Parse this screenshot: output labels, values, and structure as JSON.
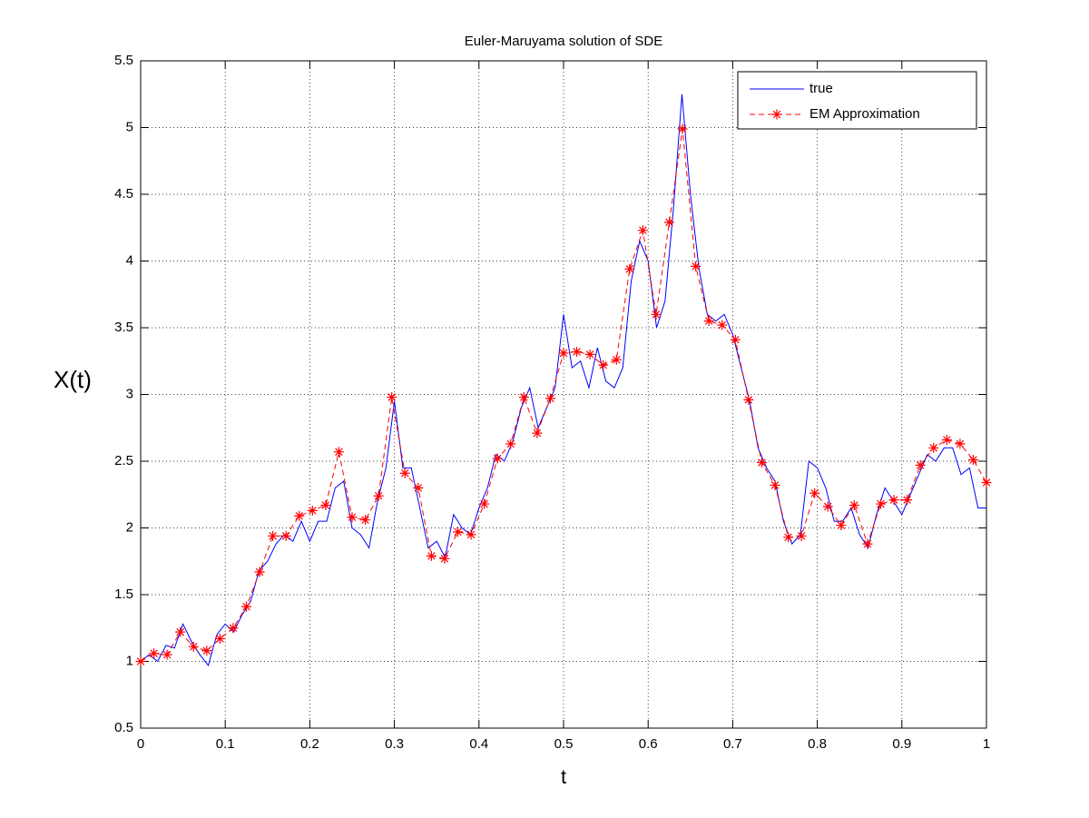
{
  "chart_data": {
    "type": "line",
    "title": "Euler-Maruyama solution of SDE",
    "x_label": "t",
    "y_label": "X(t)",
    "xlim": [
      0,
      1
    ],
    "ylim": [
      0.5,
      5.5
    ],
    "xticks": [
      0,
      0.1,
      0.2,
      0.3,
      0.4,
      0.5,
      0.6,
      0.7,
      0.8,
      0.9,
      1
    ],
    "yticks": [
      0.5,
      1,
      1.5,
      2,
      2.5,
      3,
      3.5,
      4,
      4.5,
      5,
      5.5
    ],
    "grid": true,
    "legend": "upper right",
    "series": [
      {
        "name": "true",
        "color": "#0000ff",
        "style": "solid",
        "marker": "none",
        "x": [
          0,
          0.01,
          0.02,
          0.03,
          0.04,
          0.05,
          0.06,
          0.07,
          0.08,
          0.09,
          0.1,
          0.11,
          0.12,
          0.13,
          0.14,
          0.15,
          0.16,
          0.17,
          0.18,
          0.19,
          0.2,
          0.21,
          0.22,
          0.23,
          0.24,
          0.25,
          0.26,
          0.27,
          0.28,
          0.29,
          0.3,
          0.31,
          0.32,
          0.33,
          0.34,
          0.35,
          0.36,
          0.37,
          0.38,
          0.39,
          0.4,
          0.41,
          0.42,
          0.43,
          0.44,
          0.45,
          0.46,
          0.47,
          0.48,
          0.49,
          0.5,
          0.51,
          0.52,
          0.53,
          0.54,
          0.55,
          0.56,
          0.57,
          0.58,
          0.59,
          0.6,
          0.61,
          0.62,
          0.63,
          0.64,
          0.65,
          0.66,
          0.67,
          0.68,
          0.69,
          0.7,
          0.71,
          0.72,
          0.73,
          0.74,
          0.75,
          0.76,
          0.77,
          0.78,
          0.79,
          0.8,
          0.81,
          0.82,
          0.83,
          0.84,
          0.85,
          0.86,
          0.87,
          0.88,
          0.89,
          0.9,
          0.91,
          0.92,
          0.93,
          0.94,
          0.95,
          0.96,
          0.97,
          0.98,
          0.99,
          1
        ],
        "values": [
          1.0,
          1.05,
          1.0,
          1.12,
          1.1,
          1.28,
          1.15,
          1.05,
          0.97,
          1.2,
          1.28,
          1.22,
          1.35,
          1.45,
          1.68,
          1.75,
          1.88,
          1.95,
          1.9,
          2.05,
          1.9,
          2.05,
          2.05,
          2.3,
          2.35,
          2.0,
          1.95,
          1.85,
          2.2,
          2.45,
          2.95,
          2.45,
          2.45,
          2.15,
          1.85,
          1.9,
          1.78,
          2.1,
          2.0,
          1.95,
          2.15,
          2.3,
          2.55,
          2.5,
          2.65,
          2.9,
          3.05,
          2.75,
          2.9,
          3.05,
          3.6,
          3.2,
          3.25,
          3.05,
          3.35,
          3.1,
          3.05,
          3.2,
          3.85,
          4.15,
          4.0,
          3.5,
          3.7,
          4.4,
          5.25,
          4.5,
          3.95,
          3.6,
          3.55,
          3.6,
          3.45,
          3.2,
          2.95,
          2.6,
          2.45,
          2.35,
          2.05,
          1.88,
          1.95,
          2.5,
          2.45,
          2.3,
          2.05,
          2.05,
          2.15,
          1.95,
          1.85,
          2.1,
          2.3,
          2.2,
          2.1,
          2.25,
          2.4,
          2.55,
          2.5,
          2.6,
          2.6,
          2.4,
          2.45,
          2.15,
          2.15
        ]
      },
      {
        "name": "EM Approximation",
        "color": "#ff0000",
        "style": "dashed",
        "marker": "star",
        "x": [
          0,
          0.015625,
          0.03125,
          0.046875,
          0.0625,
          0.078125,
          0.09375,
          0.109375,
          0.125,
          0.140625,
          0.15625,
          0.171875,
          0.1875,
          0.203125,
          0.21875,
          0.234375,
          0.25,
          0.265625,
          0.28125,
          0.296875,
          0.3125,
          0.328125,
          0.34375,
          0.359375,
          0.375,
          0.390625,
          0.40625,
          0.421875,
          0.4375,
          0.453125,
          0.46875,
          0.484375,
          0.5,
          0.515625,
          0.53125,
          0.546875,
          0.5625,
          0.578125,
          0.59375,
          0.609375,
          0.625,
          0.640625,
          0.65625,
          0.671875,
          0.6875,
          0.703125,
          0.71875,
          0.734375,
          0.75,
          0.765625,
          0.78125,
          0.796875,
          0.8125,
          0.828125,
          0.84375,
          0.859375,
          0.875,
          0.890625,
          0.90625,
          0.921875,
          0.9375,
          0.953125,
          0.96875,
          0.984375,
          1
        ],
        "values": [
          1.0,
          1.06,
          1.05,
          1.22,
          1.11,
          1.08,
          1.17,
          1.25,
          1.41,
          1.67,
          1.94,
          1.94,
          2.09,
          2.13,
          2.17,
          2.57,
          2.08,
          2.06,
          2.24,
          2.98,
          2.41,
          2.3,
          1.79,
          1.77,
          1.97,
          1.95,
          2.18,
          2.52,
          2.63,
          2.98,
          2.71,
          2.97,
          3.31,
          3.32,
          3.3,
          3.22,
          3.26,
          3.94,
          4.23,
          3.6,
          4.29,
          4.99,
          3.96,
          3.55,
          3.52,
          3.41,
          2.96,
          2.49,
          2.32,
          1.93,
          1.94,
          2.26,
          2.16,
          2.02,
          2.17,
          1.88,
          2.18,
          2.21,
          2.21,
          2.47,
          2.6,
          2.66,
          2.63,
          2.51,
          2.34
        ]
      }
    ]
  }
}
